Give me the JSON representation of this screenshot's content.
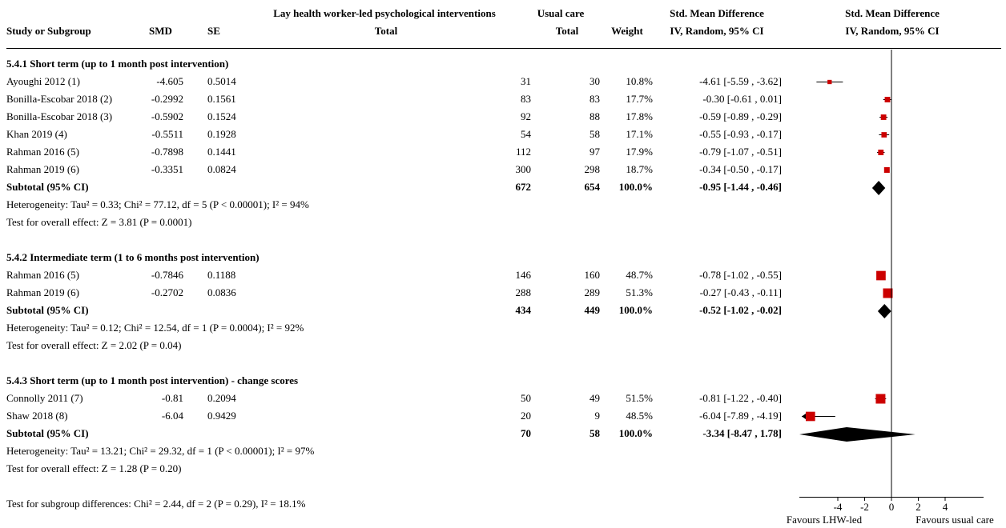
{
  "header": {
    "study": "Study or Subgroup",
    "smd": "SMD",
    "se": "SE",
    "exp_group": "Lay health worker-led psychological interventions",
    "exp_total": "Total",
    "ctl_group": "Usual care",
    "ctl_total": "Total",
    "weight": "Weight",
    "ci_title": "Std. Mean Difference",
    "ci_method": "IV, Random, 95% CI",
    "plot_title": "Std. Mean Difference",
    "plot_method": "IV, Random, 95% CI"
  },
  "groups": [
    {
      "title": "5.4.1 Short term (up to 1 month post intervention)",
      "studies": [
        {
          "name": "Ayoughi 2012 (1)",
          "smd": "-4.605",
          "se": "0.5014",
          "n_exp": "31",
          "n_ctl": "30",
          "weight": "10.8%",
          "ci_text": "-4.61 [-5.59 , -3.62]"
        },
        {
          "name": "Bonilla-Escobar 2018 (2)",
          "smd": "-0.2992",
          "se": "0.1561",
          "n_exp": "83",
          "n_ctl": "83",
          "weight": "17.7%",
          "ci_text": "-0.30 [-0.61 , 0.01]"
        },
        {
          "name": "Bonilla-Escobar 2018 (3)",
          "smd": "-0.5902",
          "se": "0.1524",
          "n_exp": "92",
          "n_ctl": "88",
          "weight": "17.8%",
          "ci_text": "-0.59 [-0.89 , -0.29]"
        },
        {
          "name": "Khan 2019 (4)",
          "smd": "-0.5511",
          "se": "0.1928",
          "n_exp": "54",
          "n_ctl": "58",
          "weight": "17.1%",
          "ci_text": "-0.55 [-0.93 , -0.17]"
        },
        {
          "name": "Rahman 2016 (5)",
          "smd": "-0.7898",
          "se": "0.1441",
          "n_exp": "112",
          "n_ctl": "97",
          "weight": "17.9%",
          "ci_text": "-0.79 [-1.07 , -0.51]"
        },
        {
          "name": "Rahman 2019 (6)",
          "smd": "-0.3351",
          "se": "0.0824",
          "n_exp": "300",
          "n_ctl": "298",
          "weight": "18.7%",
          "ci_text": "-0.34 [-0.50 , -0.17]"
        }
      ],
      "subtotal": {
        "label": "Subtotal (95% CI)",
        "n_exp": "672",
        "n_ctl": "654",
        "weight": "100.0%",
        "ci_text": "-0.95 [-1.44 , -0.46]"
      },
      "heterogeneity": "Heterogeneity: Tau² = 0.33; Chi² = 77.12, df = 5 (P < 0.00001); I² = 94%",
      "overall": "Test for overall effect: Z = 3.81 (P = 0.0001)"
    },
    {
      "title": "5.4.2 Intermediate term (1 to 6 months post intervention)",
      "studies": [
        {
          "name": "Rahman 2016 (5)",
          "smd": "-0.7846",
          "se": "0.1188",
          "n_exp": "146",
          "n_ctl": "160",
          "weight": "48.7%",
          "ci_text": "-0.78 [-1.02 , -0.55]"
        },
        {
          "name": "Rahman 2019 (6)",
          "smd": "-0.2702",
          "se": "0.0836",
          "n_exp": "288",
          "n_ctl": "289",
          "weight": "51.3%",
          "ci_text": "-0.27 [-0.43 , -0.11]"
        }
      ],
      "subtotal": {
        "label": "Subtotal (95% CI)",
        "n_exp": "434",
        "n_ctl": "449",
        "weight": "100.0%",
        "ci_text": "-0.52 [-1.02 , -0.02]"
      },
      "heterogeneity": "Heterogeneity: Tau² = 0.12; Chi² = 12.54, df = 1 (P = 0.0004); I² = 92%",
      "overall": "Test for overall effect: Z = 2.02 (P = 0.04)"
    },
    {
      "title": "5.4.3 Short term (up to 1 month post intervention) - change scores",
      "studies": [
        {
          "name": "Connolly 2011 (7)",
          "smd": "-0.81",
          "se": "0.2094",
          "n_exp": "50",
          "n_ctl": "49",
          "weight": "51.5%",
          "ci_text": "-0.81 [-1.22 , -0.40]"
        },
        {
          "name": "Shaw 2018 (8)",
          "smd": "-6.04",
          "se": "0.9429",
          "n_exp": "20",
          "n_ctl": "9",
          "weight": "48.5%",
          "ci_text": "-6.04 [-7.89 , -4.19]"
        }
      ],
      "subtotal": {
        "label": "Subtotal (95% CI)",
        "n_exp": "70",
        "n_ctl": "58",
        "weight": "100.0%",
        "ci_text": "-3.34 [-8.47 , 1.78]"
      },
      "heterogeneity": "Heterogeneity: Tau² = 13.21; Chi² = 29.32, df = 1 (P < 0.00001); I² = 97%",
      "overall": "Test for overall effect: Z = 1.28 (P = 0.20)"
    }
  ],
  "subgroup_test": "Test for subgroup differences: Chi² = 2.44, df = 2 (P = 0.29), I² = 18.1%",
  "axis": {
    "ticks": [
      "-4",
      "-2",
      "0",
      "2",
      "4"
    ],
    "favours_left": "Favours LHW-led",
    "favours_right": "Favours usual care"
  },
  "colors": {
    "study_marker": "#cc0000",
    "diamond": "#000000",
    "line": "#000000"
  },
  "chart_data": {
    "type": "forest",
    "xlim": [
      -6,
      6
    ],
    "ticks": [
      -4,
      -2,
      0,
      2,
      4
    ],
    "reference_line": 0,
    "groups": [
      {
        "title": "5.4.1 Short term (up to 1 month post intervention)",
        "studies": [
          {
            "name": "Ayoughi 2012 (1)",
            "est": -4.61,
            "lo": -5.59,
            "hi": -3.62,
            "weight": 10.8
          },
          {
            "name": "Bonilla-Escobar 2018 (2)",
            "est": -0.3,
            "lo": -0.61,
            "hi": 0.01,
            "weight": 17.7
          },
          {
            "name": "Bonilla-Escobar 2018 (3)",
            "est": -0.59,
            "lo": -0.89,
            "hi": -0.29,
            "weight": 17.8
          },
          {
            "name": "Khan 2019 (4)",
            "est": -0.55,
            "lo": -0.93,
            "hi": -0.17,
            "weight": 17.1
          },
          {
            "name": "Rahman 2016 (5)",
            "est": -0.79,
            "lo": -1.07,
            "hi": -0.51,
            "weight": 17.9
          },
          {
            "name": "Rahman 2019 (6)",
            "est": -0.34,
            "lo": -0.5,
            "hi": -0.17,
            "weight": 18.7
          }
        ],
        "subtotal": {
          "est": -0.95,
          "lo": -1.44,
          "hi": -0.46
        }
      },
      {
        "title": "5.4.2 Intermediate term (1 to 6 months post intervention)",
        "studies": [
          {
            "name": "Rahman 2016 (5)",
            "est": -0.78,
            "lo": -1.02,
            "hi": -0.55,
            "weight": 48.7
          },
          {
            "name": "Rahman 2019 (6)",
            "est": -0.27,
            "lo": -0.43,
            "hi": -0.11,
            "weight": 51.3
          }
        ],
        "subtotal": {
          "est": -0.52,
          "lo": -1.02,
          "hi": -0.02
        }
      },
      {
        "title": "5.4.3 Short term (up to 1 month post intervention) - change scores",
        "studies": [
          {
            "name": "Connolly 2011 (7)",
            "est": -0.81,
            "lo": -1.22,
            "hi": -0.4,
            "weight": 51.5
          },
          {
            "name": "Shaw 2018 (8)",
            "est": -6.04,
            "lo": -7.89,
            "hi": -4.19,
            "weight": 48.5
          }
        ],
        "subtotal": {
          "est": -3.34,
          "lo": -8.47,
          "hi": 1.78
        }
      }
    ]
  }
}
